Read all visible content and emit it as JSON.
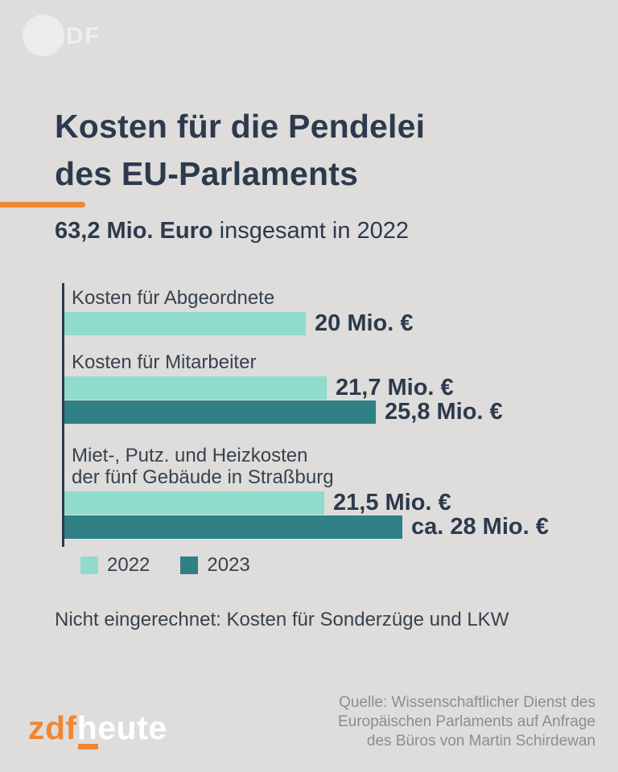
{
  "colors": {
    "background": "#dedddb",
    "text_dark": "#2d3a4d",
    "label_gray": "#37424f",
    "accent_orange": "#ee8733",
    "teal_2022": "#8fdccc",
    "teal_2023": "#2f8185",
    "source_gray": "#8d8d8d",
    "watermark_white": "#ffffff"
  },
  "watermark": {
    "text": "2DF"
  },
  "header": {
    "title_line1": "Kosten für die Pendelei",
    "title_line2": "des EU-Parlaments",
    "subtitle_bold": "63,2 Mio. Euro",
    "subtitle_rest": " insgesamt in 2022"
  },
  "chart_data": {
    "type": "bar",
    "orientation": "horizontal",
    "unit": "Mio. Euro",
    "xmax": 28,
    "grid": false,
    "legend_position": "bottom-left",
    "categories": [
      "Kosten für Abgeordnete",
      "Kosten für Mitarbeiter",
      "Miet-, Putz. und Heizkosten der fünf Gebäude in Straßburg"
    ],
    "series": [
      {
        "name": "2022",
        "color": "#8fdccc",
        "values": [
          20,
          21.7,
          21.5
        ]
      },
      {
        "name": "2023",
        "color": "#2f8185",
        "values": [
          null,
          25.8,
          28
        ]
      }
    ],
    "groups": [
      {
        "label_lines": [
          "Kosten für Abgeordnete"
        ],
        "bars": [
          {
            "year": "2022",
            "value": 20,
            "label": "20 Mio. €"
          }
        ]
      },
      {
        "label_lines": [
          "Kosten für Mitarbeiter"
        ],
        "bars": [
          {
            "year": "2022",
            "value": 21.7,
            "label": "21,7 Mio. €"
          },
          {
            "year": "2023",
            "value": 25.8,
            "label": "25,8 Mio. €"
          }
        ]
      },
      {
        "label_lines": [
          "Miet-, Putz. und Heizkosten",
          "der fünf Gebäude in Straßburg"
        ],
        "bars": [
          {
            "year": "2022",
            "value": 21.5,
            "label": "21,5 Mio. €"
          },
          {
            "year": "2023",
            "value": 28,
            "label": "ca. 28 Mio. €"
          }
        ]
      }
    ],
    "legend": [
      {
        "label": "2022",
        "color": "#8fdccc"
      },
      {
        "label": "2023",
        "color": "#2f8185"
      }
    ]
  },
  "footnote": "Nicht eingerechnet: Kosten für Sonderzüge und LKW",
  "footer": {
    "logo_zdf": "zdf",
    "logo_heute": "heute",
    "source_line1": "Quelle: Wissenschaftlicher Dienst des",
    "source_line2": "Europäischen Parlaments auf Anfrage",
    "source_line3": "des Büros von Martin Schirdewan"
  }
}
